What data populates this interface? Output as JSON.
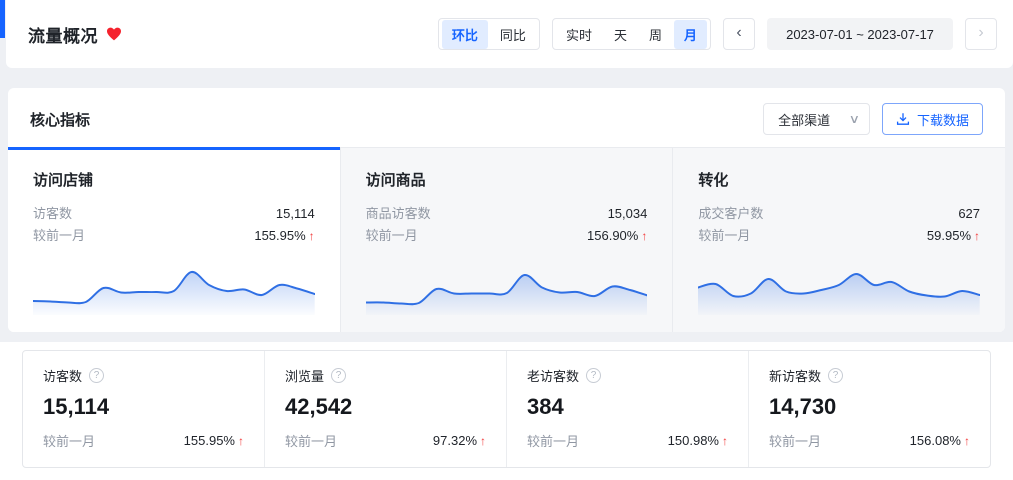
{
  "header": {
    "title": "流量概况",
    "compare_toggle": {
      "options": [
        "环比",
        "同比"
      ],
      "active": "环比"
    },
    "granularity_tabs": {
      "options": [
        "实时",
        "天",
        "周",
        "月"
      ],
      "active": "月"
    },
    "date_range": "2023-07-01 ~ 2023-07-17"
  },
  "icons": {
    "chevron_left": "‹",
    "chevron_right": "›",
    "select_caret": "∨",
    "help": "?",
    "up_arrow": "↑"
  },
  "core_metrics": {
    "section_title": "核心指标",
    "channel_select": "全部渠道",
    "download_label": "下载数据"
  },
  "metric_tabs": [
    {
      "title": "访问店铺",
      "metric_label": "访客数",
      "metric_value": "15,114",
      "compare_label": "较前一月",
      "compare_value": "155.95%",
      "trend": "up"
    },
    {
      "title": "访问商品",
      "metric_label": "商品访客数",
      "metric_value": "15,034",
      "compare_label": "较前一月",
      "compare_value": "156.90%",
      "trend": "up"
    },
    {
      "title": "转化",
      "metric_label": "成交客户数",
      "metric_value": "627",
      "compare_label": "较前一月",
      "compare_value": "59.95%",
      "trend": "up"
    }
  ],
  "summary_stats": [
    {
      "label": "访客数",
      "value": "15,114",
      "compare_label": "较前一月",
      "compare_value": "155.95%",
      "trend": "up"
    },
    {
      "label": "浏览量",
      "value": "42,542",
      "compare_label": "较前一月",
      "compare_value": "97.32%",
      "trend": "up"
    },
    {
      "label": "老访客数",
      "value": "384",
      "compare_label": "较前一月",
      "compare_value": "150.98%",
      "trend": "up"
    },
    {
      "label": "新访客数",
      "value": "14,730",
      "compare_label": "较前一月",
      "compare_value": "156.08%",
      "trend": "up"
    }
  ],
  "colors": {
    "accent_blue": "#1664ff",
    "sparkline_stroke": "#2f6fe4",
    "trend_up_red": "#f23c3c",
    "heart_red": "#f5222d",
    "inactive_tab_bg": "#f6f7f9"
  },
  "chart_data": [
    {
      "type": "area",
      "title": "访问店铺 访客数 趋势",
      "x_implied": "daily, 2023-07-01 to 2023-07-17",
      "values_unit": "relative-height-percent",
      "values": [
        18,
        17,
        15,
        16,
        44,
        35,
        36,
        36,
        38,
        76,
        50,
        38,
        41,
        30,
        50,
        43,
        32
      ],
      "legend": false,
      "axes_visible": false
    },
    {
      "type": "area",
      "title": "访问商品 商品访客数 趋势",
      "x_implied": "daily, 2023-07-01 to 2023-07-17",
      "values_unit": "relative-height-percent",
      "values": [
        15,
        15,
        13,
        14,
        42,
        33,
        33,
        33,
        34,
        70,
        45,
        35,
        36,
        28,
        47,
        40,
        29
      ],
      "legend": false,
      "axes_visible": false
    },
    {
      "type": "area",
      "title": "转化 成交客户数 趋势",
      "x_implied": "daily, 2023-07-01 to 2023-07-17",
      "values_unit": "relative-height-percent",
      "values": [
        45,
        52,
        28,
        33,
        62,
        37,
        33,
        40,
        50,
        72,
        50,
        56,
        37,
        29,
        27,
        38,
        30
      ],
      "legend": false,
      "axes_visible": false
    }
  ]
}
